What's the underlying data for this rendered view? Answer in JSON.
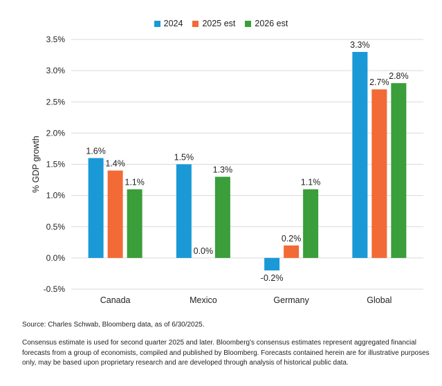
{
  "chart_data": {
    "type": "bar",
    "title": "",
    "ylabel": "% GDP growth",
    "xlabel": "",
    "ylim": [
      -0.5,
      3.5
    ],
    "yticks": [
      "-0.5%",
      "0.0%",
      "0.5%",
      "1.0%",
      "1.5%",
      "2.0%",
      "2.5%",
      "3.0%",
      "3.5%"
    ],
    "categories": [
      "Canada",
      "Mexico",
      "Germany",
      "Global"
    ],
    "legend_position": "top-center",
    "grid": true,
    "series": [
      {
        "name": "2024",
        "color": "#1a99d6",
        "values": [
          1.6,
          1.5,
          -0.2,
          3.3
        ],
        "labels": [
          "1.6%",
          "1.5%",
          "-0.2%",
          "3.3%"
        ]
      },
      {
        "name": "2025 est",
        "color": "#f26a36",
        "values": [
          1.4,
          0.0,
          0.2,
          2.7
        ],
        "labels": [
          "1.4%",
          "0.0%",
          "0.2%",
          "2.7%"
        ]
      },
      {
        "name": "2026 est",
        "color": "#3a9e3a",
        "values": [
          1.1,
          1.3,
          1.1,
          2.8
        ],
        "labels": [
          "1.1%",
          "1.3%",
          "1.1%",
          "2.8%"
        ]
      }
    ]
  },
  "notes": {
    "source": "Source: Charles Schwab, Bloomberg data, as of 6/30/2025.",
    "footnote": "Consensus estimate is used for second quarter 2025 and later. Bloomberg's consensus estimates represent aggregated financial forecasts from a group of economists, compiled and published by Bloomberg. Forecasts contained herein are for illustrative purposes only, may be based upon proprietary research and are developed through analysis of historical public data."
  }
}
